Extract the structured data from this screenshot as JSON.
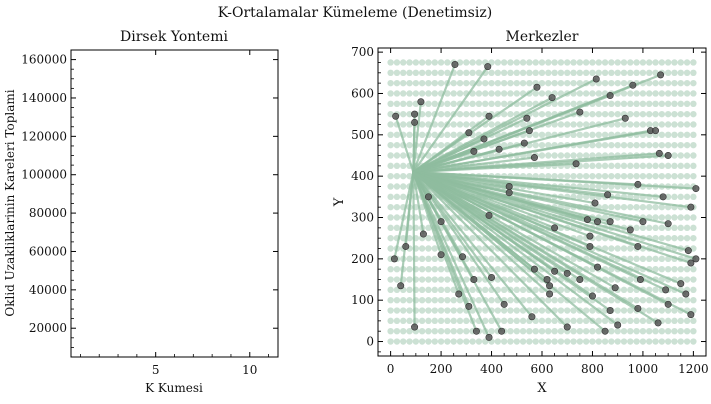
{
  "suptitle": "K-Ortalamalar Kümeleme (Denetimsiz)",
  "chart_data": [
    {
      "type": "line",
      "title": "Dirsek Yontemi",
      "xlabel": "K Kumesi",
      "ylabel": "Oklid Uzakliklarinin Kareleri Toplami",
      "xlim": [
        0.5,
        11.5
      ],
      "ylim": [
        5000,
        165000
      ],
      "xticks": [
        "5",
        "10"
      ],
      "yticks": [
        "20000",
        "40000",
        "60000",
        "80000",
        "100000",
        "120000",
        "140000",
        "160000"
      ],
      "series": []
    },
    {
      "type": "scatter",
      "title": "Merkezler",
      "xlabel": "X",
      "ylabel": "Y",
      "xlim": [
        -50,
        1250
      ],
      "ylim": [
        -35,
        710
      ],
      "xticks": [
        "0",
        "200",
        "400",
        "600",
        "800",
        "1000",
        "1200"
      ],
      "yticks": [
        "0",
        "100",
        "200",
        "300",
        "400",
        "500",
        "600",
        "700"
      ],
      "grid_points": {
        "x_start": 0,
        "x_end": 1200,
        "x_step": 25,
        "y_start": 0,
        "y_end": 675,
        "y_step": 25,
        "color": "#8fbc9f"
      },
      "hub": [
        90,
        410
      ],
      "points": [
        [
          255,
          670
        ],
        [
          385,
          665
        ],
        [
          580,
          615
        ],
        [
          815,
          635
        ],
        [
          1070,
          645
        ],
        [
          640,
          590
        ],
        [
          870,
          595
        ],
        [
          960,
          620
        ],
        [
          120,
          580
        ],
        [
          20,
          545
        ],
        [
          95,
          550
        ],
        [
          95,
          530
        ],
        [
          390,
          545
        ],
        [
          310,
          505
        ],
        [
          540,
          540
        ],
        [
          750,
          555
        ],
        [
          930,
          540
        ],
        [
          550,
          510
        ],
        [
          1030,
          510
        ],
        [
          1050,
          510
        ],
        [
          370,
          490
        ],
        [
          430,
          465
        ],
        [
          330,
          460
        ],
        [
          570,
          445
        ],
        [
          735,
          430
        ],
        [
          1065,
          455
        ],
        [
          1100,
          450
        ],
        [
          1210,
          370
        ],
        [
          470,
          375
        ],
        [
          980,
          380
        ],
        [
          150,
          350
        ],
        [
          470,
          360
        ],
        [
          810,
          335
        ],
        [
          860,
          355
        ],
        [
          1080,
          350
        ],
        [
          390,
          305
        ],
        [
          780,
          295
        ],
        [
          820,
          290
        ],
        [
          870,
          290
        ],
        [
          1000,
          290
        ],
        [
          1100,
          285
        ],
        [
          1190,
          325
        ],
        [
          650,
          275
        ],
        [
          950,
          270
        ],
        [
          200,
          290
        ],
        [
          130,
          260
        ],
        [
          60,
          230
        ],
        [
          790,
          255
        ],
        [
          790,
          230
        ],
        [
          980,
          230
        ],
        [
          200,
          210
        ],
        [
          285,
          205
        ],
        [
          15,
          200
        ],
        [
          1180,
          220
        ],
        [
          1190,
          190
        ],
        [
          1210,
          200
        ],
        [
          570,
          175
        ],
        [
          700,
          165
        ],
        [
          820,
          180
        ],
        [
          650,
          170
        ],
        [
          400,
          155
        ],
        [
          330,
          150
        ],
        [
          750,
          150
        ],
        [
          990,
          150
        ],
        [
          1150,
          140
        ],
        [
          630,
          135
        ],
        [
          890,
          130
        ],
        [
          1170,
          115
        ],
        [
          270,
          115
        ],
        [
          310,
          85
        ],
        [
          450,
          90
        ],
        [
          630,
          115
        ],
        [
          800,
          110
        ],
        [
          1090,
          125
        ],
        [
          40,
          135
        ],
        [
          980,
          80
        ],
        [
          1100,
          90
        ],
        [
          1190,
          65
        ],
        [
          560,
          60
        ],
        [
          870,
          75
        ],
        [
          1060,
          45
        ],
        [
          900,
          40
        ],
        [
          95,
          35
        ],
        [
          340,
          25
        ],
        [
          440,
          25
        ],
        [
          700,
          35
        ],
        [
          850,
          25
        ],
        [
          390,
          10
        ],
        [
          620,
          150
        ],
        [
          530,
          480
        ]
      ],
      "hub_line_color": "#8fbc9f",
      "center_color": "#555555"
    }
  ]
}
